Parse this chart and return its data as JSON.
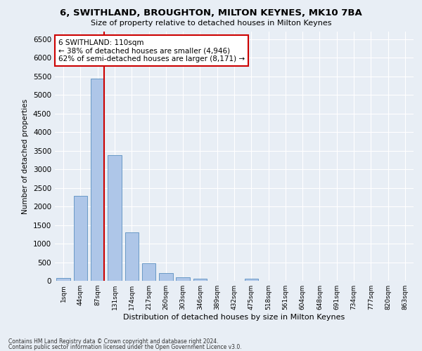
{
  "title": "6, SWITHLAND, BROUGHTON, MILTON KEYNES, MK10 7BA",
  "subtitle": "Size of property relative to detached houses in Milton Keynes",
  "xlabel": "Distribution of detached houses by size in Milton Keynes",
  "ylabel": "Number of detached properties",
  "footer_line1": "Contains HM Land Registry data © Crown copyright and database right 2024.",
  "footer_line2": "Contains public sector information licensed under the Open Government Licence v3.0.",
  "bar_labels": [
    "1sqm",
    "44sqm",
    "87sqm",
    "131sqm",
    "174sqm",
    "217sqm",
    "260sqm",
    "303sqm",
    "346sqm",
    "389sqm",
    "432sqm",
    "475sqm",
    "518sqm",
    "561sqm",
    "604sqm",
    "648sqm",
    "691sqm",
    "734sqm",
    "777sqm",
    "820sqm",
    "863sqm"
  ],
  "bar_values": [
    80,
    2280,
    5430,
    3380,
    1310,
    475,
    215,
    95,
    50,
    0,
    0,
    60,
    0,
    0,
    0,
    0,
    0,
    0,
    0,
    0,
    0
  ],
  "bar_color": "#aec6e8",
  "bar_edgecolor": "#5a8fc0",
  "ylim": [
    0,
    6700
  ],
  "yticks": [
    0,
    500,
    1000,
    1500,
    2000,
    2500,
    3000,
    3500,
    4000,
    4500,
    5000,
    5500,
    6000,
    6500
  ],
  "vline_color": "#cc0000",
  "annotation_text": "6 SWITHLAND: 110sqm\n← 38% of detached houses are smaller (4,946)\n62% of semi-detached houses are larger (8,171) →",
  "annotation_box_color": "#cc0000",
  "annotation_bg": "white",
  "background_color": "#e8eef5",
  "grid_color": "white"
}
